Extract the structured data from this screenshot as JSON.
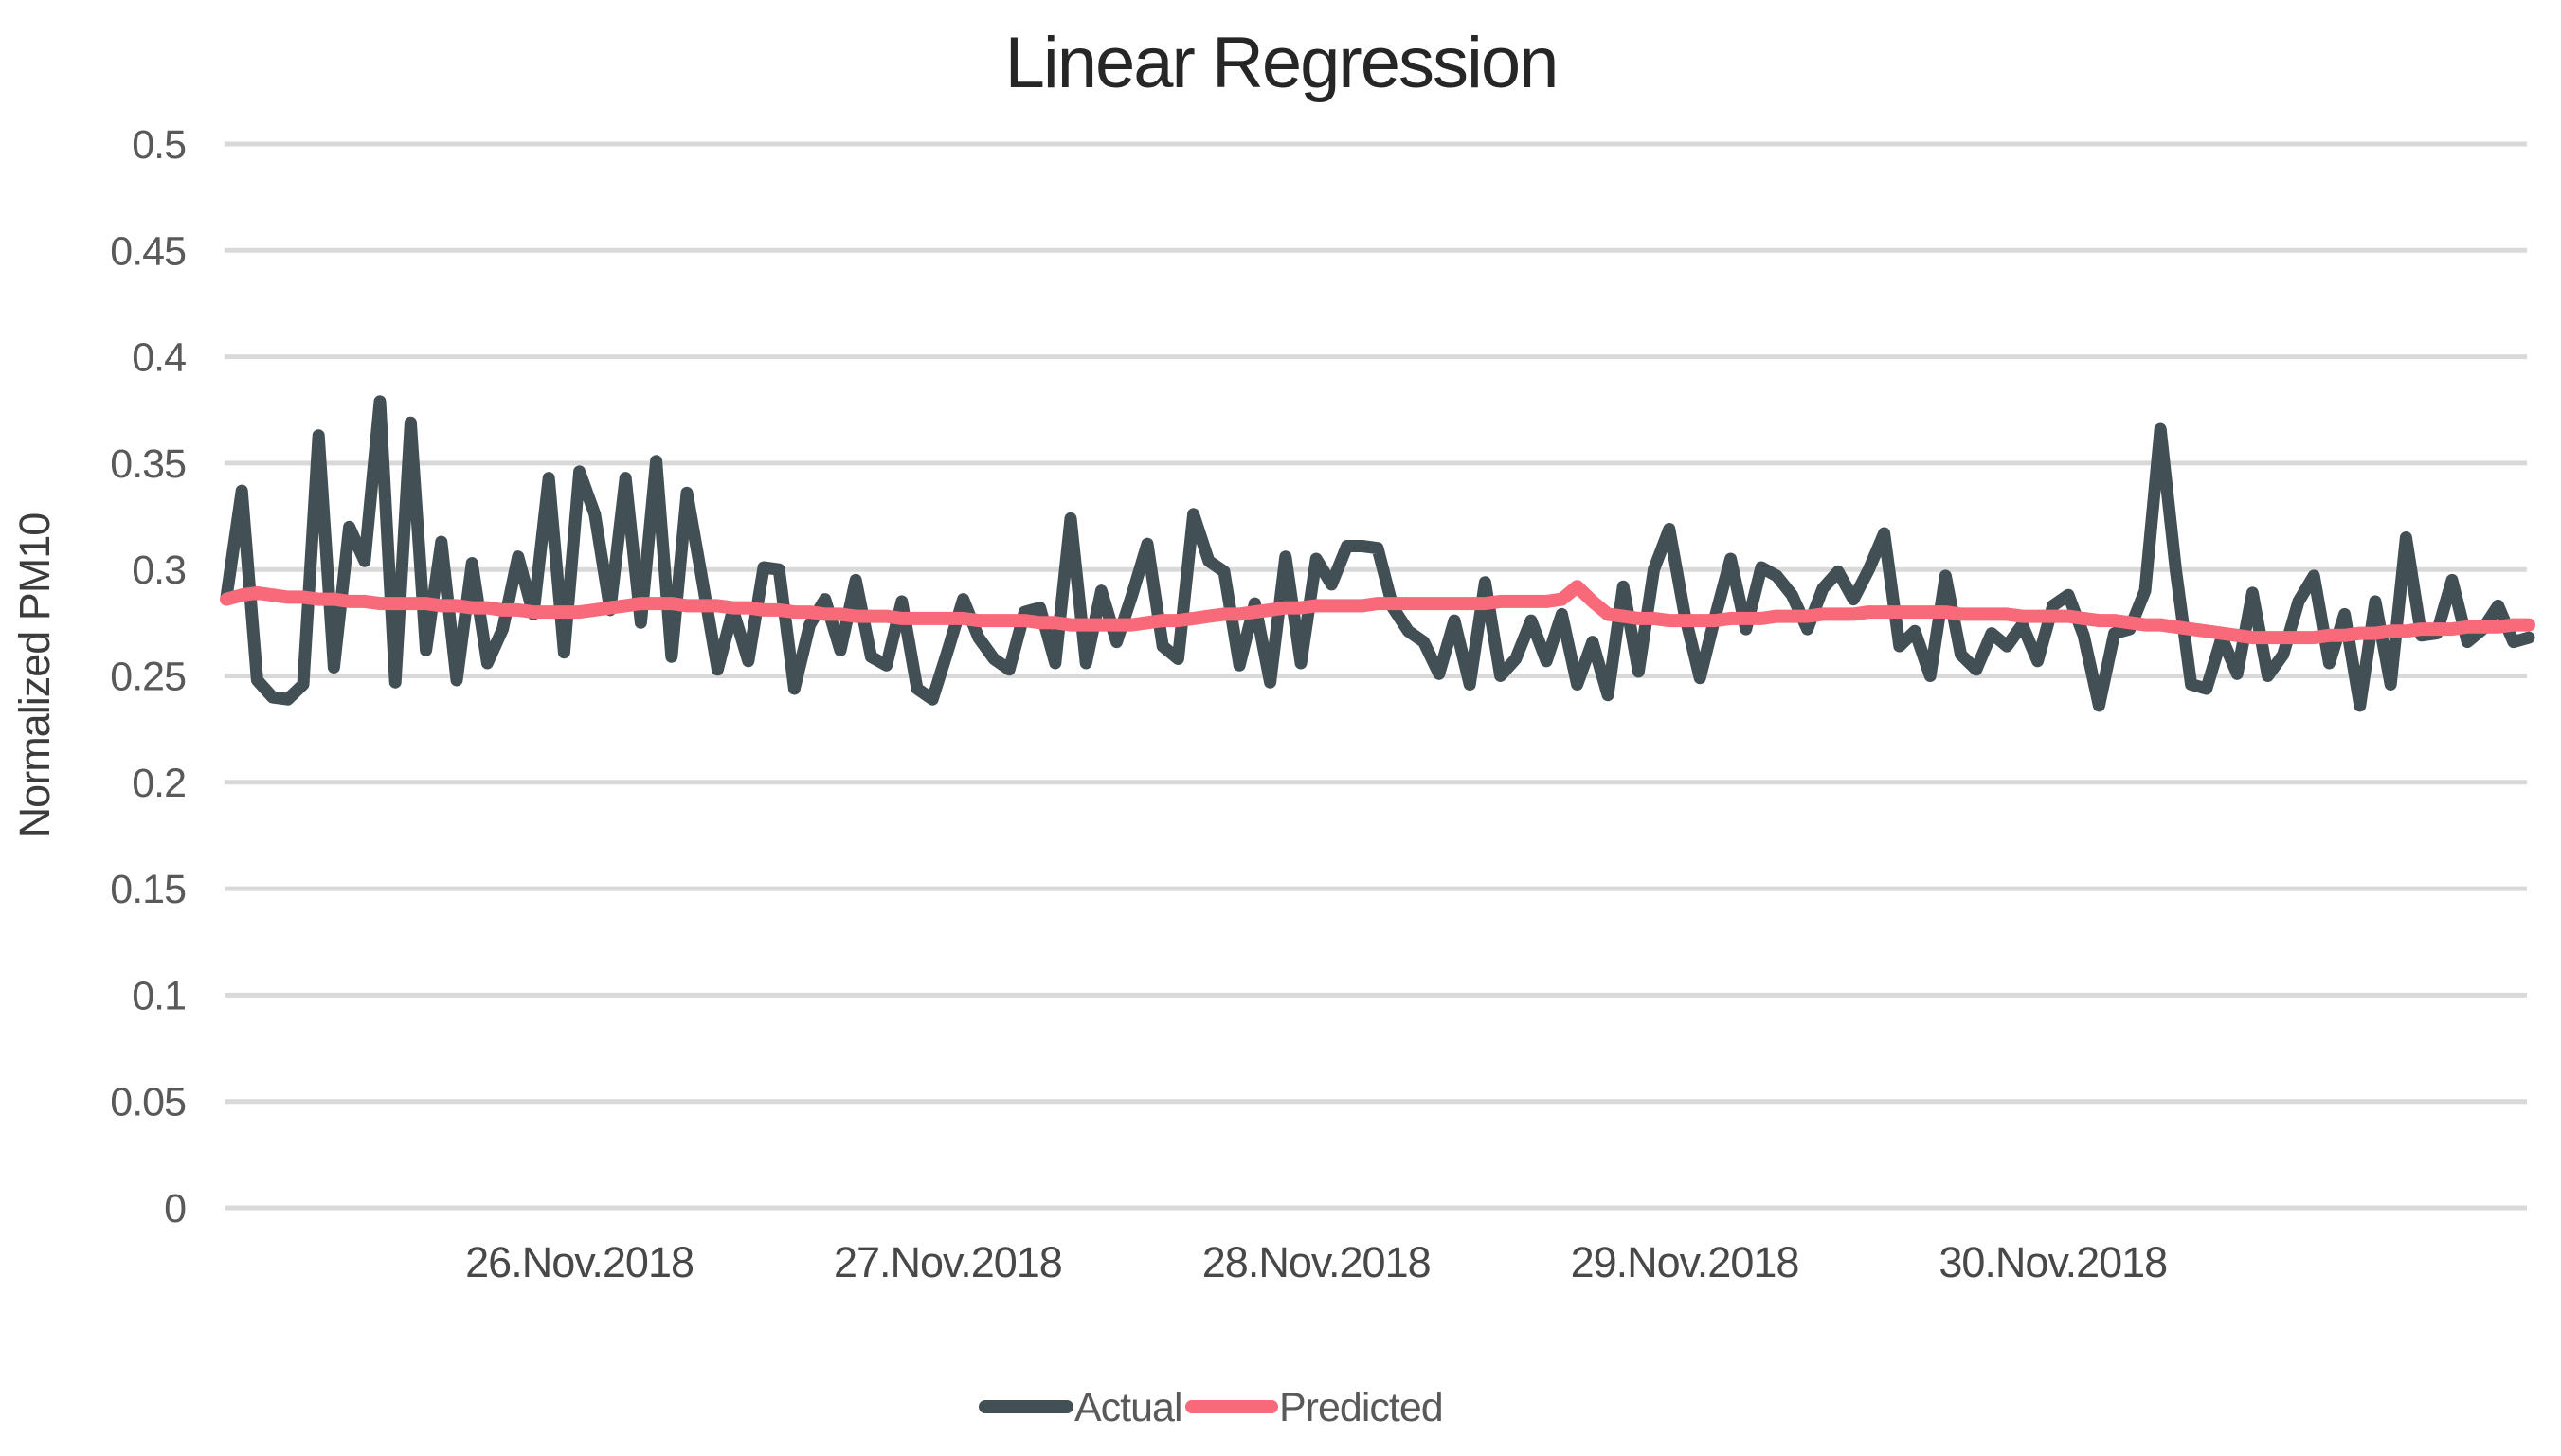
{
  "title": "Linear Regression",
  "y_axis_title": "Normalized PM10",
  "legend": {
    "actual_label": "Actual",
    "predicted_label": "Predicted"
  },
  "chart_data": {
    "type": "line",
    "title": "Linear Regression",
    "xlabel": "",
    "ylabel": "Normalized PM10",
    "ylim": [
      0,
      0.5
    ],
    "y_tick_step": 0.05,
    "y_ticks": [
      0.5,
      0.45,
      0.4,
      0.35,
      0.3,
      0.25,
      0.2,
      0.15,
      0.1,
      0.05,
      0
    ],
    "y_tick_labels": [
      "0.5",
      "0.45",
      "0.4",
      "0.35",
      "0.3",
      "0.25",
      "0.2",
      "0.15",
      "0.1",
      "0.05",
      "0"
    ],
    "x_tick_labels": [
      "26.Nov.2018",
      "27.Nov.2018",
      "28.Nov.2018",
      "29.Nov.2018",
      "30.Nov.2018"
    ],
    "x_tick_indices": [
      23,
      47,
      71,
      95,
      119
    ],
    "x_resolution": "hourly",
    "x_range_depicted": "25.Nov.2018 - 01.Dec.2018",
    "grid": "horizontal-only",
    "legend_position": "bottom-center",
    "colors": {
      "actual": "#424F54",
      "predicted": "#F8697A",
      "gridline": "#D9D9D9",
      "tick_text": "#595959",
      "title_text": "#262626"
    },
    "series": [
      {
        "name": "Actual",
        "color": "#424F54",
        "values": [
          0.287,
          0.337,
          0.248,
          0.24,
          0.239,
          0.246,
          0.363,
          0.254,
          0.32,
          0.304,
          0.379,
          0.247,
          0.369,
          0.262,
          0.313,
          0.248,
          0.303,
          0.256,
          0.272,
          0.306,
          0.279,
          0.343,
          0.261,
          0.346,
          0.326,
          0.281,
          0.343,
          0.275,
          0.351,
          0.259,
          0.336,
          0.295,
          0.253,
          0.281,
          0.257,
          0.301,
          0.3,
          0.244,
          0.274,
          0.286,
          0.262,
          0.295,
          0.259,
          0.255,
          0.285,
          0.244,
          0.239,
          0.262,
          0.286,
          0.268,
          0.258,
          0.253,
          0.28,
          0.282,
          0.256,
          0.324,
          0.256,
          0.29,
          0.266,
          0.288,
          0.312,
          0.264,
          0.258,
          0.326,
          0.304,
          0.299,
          0.255,
          0.284,
          0.247,
          0.306,
          0.256,
          0.305,
          0.293,
          0.311,
          0.311,
          0.31,
          0.282,
          0.271,
          0.266,
          0.251,
          0.276,
          0.246,
          0.294,
          0.25,
          0.258,
          0.276,
          0.257,
          0.279,
          0.246,
          0.266,
          0.241,
          0.292,
          0.252,
          0.3,
          0.319,
          0.279,
          0.249,
          0.278,
          0.305,
          0.272,
          0.301,
          0.297,
          0.288,
          0.272,
          0.291,
          0.299,
          0.286,
          0.3,
          0.317,
          0.264,
          0.271,
          0.25,
          0.297,
          0.26,
          0.253,
          0.27,
          0.264,
          0.274,
          0.257,
          0.283,
          0.288,
          0.269,
          0.236,
          0.27,
          0.272,
          0.29,
          0.366,
          0.3,
          0.246,
          0.244,
          0.268,
          0.251,
          0.289,
          0.25,
          0.26,
          0.285,
          0.297,
          0.256,
          0.279,
          0.236,
          0.285,
          0.246,
          0.315,
          0.269,
          0.27,
          0.295,
          0.266,
          0.272,
          0.283,
          0.266,
          0.268
        ]
      },
      {
        "name": "Predicted",
        "color": "#F8697A",
        "values": [
          0.286,
          0.288,
          0.289,
          0.288,
          0.287,
          0.287,
          0.286,
          0.286,
          0.285,
          0.285,
          0.284,
          0.284,
          0.284,
          0.284,
          0.283,
          0.283,
          0.282,
          0.282,
          0.281,
          0.281,
          0.28,
          0.28,
          0.28,
          0.28,
          0.281,
          0.282,
          0.283,
          0.284,
          0.284,
          0.284,
          0.283,
          0.283,
          0.283,
          0.282,
          0.282,
          0.281,
          0.281,
          0.28,
          0.28,
          0.279,
          0.279,
          0.278,
          0.278,
          0.278,
          0.277,
          0.277,
          0.277,
          0.277,
          0.277,
          0.276,
          0.276,
          0.276,
          0.276,
          0.275,
          0.275,
          0.274,
          0.274,
          0.274,
          0.274,
          0.274,
          0.275,
          0.276,
          0.276,
          0.277,
          0.278,
          0.279,
          0.279,
          0.28,
          0.281,
          0.282,
          0.282,
          0.283,
          0.283,
          0.283,
          0.283,
          0.284,
          0.284,
          0.284,
          0.284,
          0.284,
          0.284,
          0.284,
          0.284,
          0.285,
          0.285,
          0.285,
          0.285,
          0.286,
          0.292,
          0.285,
          0.279,
          0.278,
          0.277,
          0.277,
          0.276,
          0.276,
          0.276,
          0.276,
          0.277,
          0.277,
          0.277,
          0.278,
          0.278,
          0.278,
          0.279,
          0.279,
          0.279,
          0.28,
          0.28,
          0.28,
          0.28,
          0.28,
          0.28,
          0.279,
          0.279,
          0.279,
          0.279,
          0.278,
          0.278,
          0.278,
          0.278,
          0.277,
          0.276,
          0.276,
          0.275,
          0.274,
          0.274,
          0.273,
          0.272,
          0.271,
          0.27,
          0.269,
          0.268,
          0.268,
          0.268,
          0.268,
          0.268,
          0.269,
          0.269,
          0.27,
          0.27,
          0.271,
          0.271,
          0.272,
          0.272,
          0.272,
          0.273,
          0.273,
          0.273,
          0.274,
          0.274
        ]
      }
    ]
  }
}
